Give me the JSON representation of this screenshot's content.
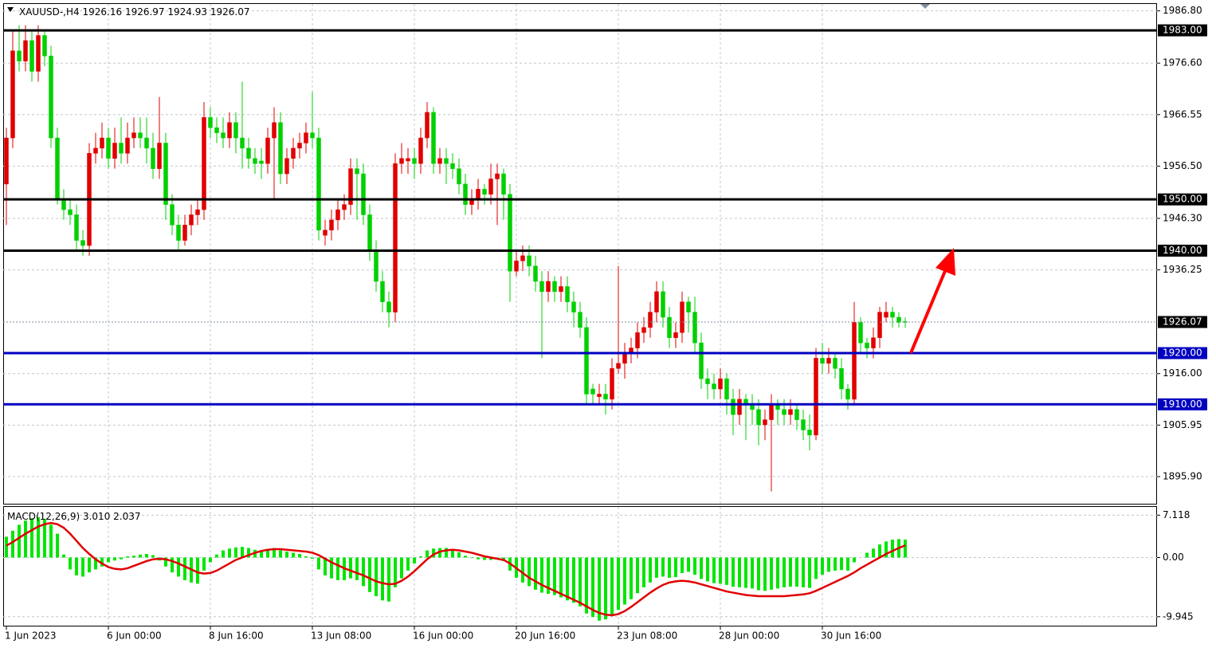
{
  "chart_data": [
    {
      "type": "candlestick",
      "symbol": "XAUUSD-,H4",
      "up_color": "#e00000",
      "down_color": "#00d000",
      "grid": true,
      "ylim": [
        1890.6,
        1988.3
      ],
      "yticks": [
        {
          "value": 1986.8,
          "label": "1986.80"
        },
        {
          "value": 1976.6,
          "label": "1976.60"
        },
        1966.55,
        {
          "value": 1956.5,
          "label": "1956.50"
        },
        {
          "value": 1946.3,
          "label": "1946.30"
        },
        1936.25,
        {
          "value": 1916,
          "label": "1916.00"
        },
        1905.95,
        {
          "value": 1895.9,
          "label": "1895.90"
        }
      ],
      "levels": [
        {
          "value": 1983,
          "label": "1983.00",
          "color": "#000000"
        },
        {
          "value": 1950,
          "label": "1950.00",
          "color": "#000000"
        },
        {
          "value": 1940,
          "label": "1940.00",
          "color": "#000000"
        },
        {
          "value": 1920,
          "label": "1920.00",
          "color": "#0000c0"
        },
        {
          "value": 1910,
          "label": "1910.00",
          "color": "#0000c0"
        }
      ],
      "candles": [
        [
          1953,
          1964,
          1945,
          1962
        ],
        [
          1962,
          1983,
          1960,
          1979
        ],
        [
          1979,
          1984,
          1975,
          1977
        ],
        [
          1977,
          1984,
          1975,
          1981
        ],
        [
          1981,
          1983,
          1973,
          1975
        ],
        [
          1975,
          1984,
          1973,
          1982
        ],
        [
          1982,
          1983,
          1976,
          1978
        ],
        [
          1978,
          1980,
          1960,
          1962
        ],
        [
          1962,
          1964,
          1949,
          1950
        ],
        [
          1950,
          1952,
          1946,
          1948
        ],
        [
          1948,
          1950,
          1945,
          1947
        ],
        [
          1947,
          1949,
          1940,
          1942
        ],
        [
          1942,
          1944,
          1939,
          1941
        ],
        [
          1941,
          1961,
          1939,
          1959
        ],
        [
          1959,
          1963,
          1957,
          1960
        ],
        [
          1960,
          1965,
          1958,
          1962
        ],
        [
          1962,
          1964,
          1956,
          1958
        ],
        [
          1958,
          1964,
          1956,
          1961
        ],
        [
          1961,
          1966,
          1957,
          1959
        ],
        [
          1959,
          1965,
          1957,
          1962
        ],
        [
          1962,
          1966,
          1960,
          1963
        ],
        [
          1963,
          1966,
          1960,
          1962
        ],
        [
          1962,
          1966,
          1957,
          1960
        ],
        [
          1960,
          1963,
          1954,
          1956
        ],
        [
          1956,
          1970,
          1954,
          1961
        ],
        [
          1961,
          1963,
          1946,
          1949
        ],
        [
          1949,
          1951,
          1943,
          1945
        ],
        [
          1945,
          1947,
          1940,
          1942
        ],
        [
          1942,
          1947,
          1941,
          1945
        ],
        [
          1945,
          1949,
          1943,
          1947
        ],
        [
          1947,
          1950,
          1945,
          1948
        ],
        [
          1948,
          1969,
          1946,
          1966
        ],
        [
          1966,
          1968,
          1962,
          1964
        ],
        [
          1964,
          1966,
          1961,
          1963
        ],
        [
          1963,
          1966,
          1960,
          1962
        ],
        [
          1962,
          1967,
          1960,
          1965
        ],
        [
          1965,
          1967,
          1959,
          1962
        ],
        [
          1962,
          1973,
          1956,
          1960
        ],
        [
          1960,
          1962,
          1956,
          1958
        ],
        [
          1958,
          1960,
          1955,
          1957
        ],
        [
          1957.5,
          1960,
          1954,
          1957
        ],
        [
          1957,
          1964,
          1955,
          1962
        ],
        [
          1962,
          1968,
          1950,
          1965
        ],
        [
          1965,
          1967,
          1953,
          1955
        ],
        [
          1955,
          1960,
          1953,
          1958
        ],
        [
          1958,
          1962,
          1956,
          1960
        ],
        [
          1960,
          1963,
          1958,
          1961
        ],
        [
          1961,
          1965,
          1959,
          1963
        ],
        [
          1963,
          1971,
          1960,
          1962
        ],
        [
          1962,
          1964,
          1942,
          1944
        ],
        [
          1943,
          1946,
          1941,
          1944
        ],
        [
          1944,
          1948,
          1942,
          1946
        ],
        [
          1946,
          1950,
          1944,
          1948
        ],
        [
          1948,
          1951,
          1946,
          1949
        ],
        [
          1949,
          1958,
          1947,
          1956
        ],
        [
          1956,
          1958,
          1946,
          1955
        ],
        [
          1955,
          1957,
          1945,
          1947
        ],
        [
          1947,
          1949,
          1938,
          1940
        ],
        [
          1940,
          1942,
          1932,
          1934
        ],
        [
          1934,
          1936,
          1928,
          1930
        ],
        [
          1930,
          1932,
          1925,
          1928
        ],
        [
          1928,
          1959,
          1926,
          1957
        ],
        [
          1957,
          1961,
          1955,
          1958
        ],
        [
          1957.5,
          1960,
          1955,
          1958
        ],
        [
          1958,
          1960,
          1954,
          1957
        ],
        [
          1957,
          1964,
          1955,
          1962
        ],
        [
          1962,
          1969,
          1960,
          1967
        ],
        [
          1967,
          1968,
          1955,
          1957
        ],
        [
          1957,
          1960,
          1955,
          1958
        ],
        [
          1958,
          1960,
          1953,
          1957
        ],
        [
          1957,
          1959,
          1954,
          1956
        ],
        [
          1956,
          1958,
          1951,
          1953
        ],
        [
          1953,
          1955,
          1947,
          1949
        ],
        [
          1949,
          1952,
          1947,
          1950
        ],
        [
          1950,
          1954,
          1948,
          1952
        ],
        [
          1952,
          1953,
          1949,
          1951
        ],
        [
          1951,
          1957,
          1949,
          1954
        ],
        [
          1954,
          1957,
          1945,
          1955
        ],
        [
          1955,
          1956,
          1946,
          1951
        ],
        [
          1951,
          1953,
          1930,
          1936
        ],
        [
          1936,
          1940,
          1935,
          1938
        ],
        [
          1938,
          1941,
          1936,
          1939
        ],
        [
          1939,
          1941,
          1935,
          1937
        ],
        [
          1937,
          1939,
          1932,
          1934
        ],
        [
          1934,
          1936,
          1919,
          1932
        ],
        [
          1932,
          1936,
          1930,
          1934
        ],
        [
          1934,
          1935,
          1930,
          1932
        ],
        [
          1932,
          1935,
          1930,
          1933
        ],
        [
          1933,
          1935,
          1928,
          1930
        ],
        [
          1930,
          1932,
          1925,
          1928
        ],
        [
          1928,
          1930,
          1923,
          1925
        ],
        [
          1925,
          1927,
          1910,
          1912
        ],
        [
          1913,
          1914,
          1910,
          1912
        ],
        [
          1911.5,
          1914,
          1910,
          1912
        ],
        [
          1912,
          1914,
          1908,
          1911
        ],
        [
          1911,
          1919,
          1909,
          1917
        ],
        [
          1917,
          1937,
          1916,
          1918
        ],
        [
          1918,
          1922,
          1915,
          1920
        ],
        [
          1920,
          1923,
          1918,
          1921
        ],
        [
          1921,
          1926,
          1919,
          1924
        ],
        [
          1924,
          1927,
          1922,
          1925
        ],
        [
          1925,
          1930,
          1923,
          1928
        ],
        [
          1928,
          1934,
          1926,
          1932
        ],
        [
          1932,
          1934,
          1925,
          1927
        ],
        [
          1927,
          1929,
          1921,
          1923
        ],
        [
          1923,
          1926,
          1921,
          1924
        ],
        [
          1924,
          1932,
          1922,
          1930
        ],
        [
          1930,
          1931,
          1924,
          1928
        ],
        [
          1928,
          1931,
          1920,
          1922
        ],
        [
          1922,
          1924,
          1913,
          1915
        ],
        [
          1915,
          1917,
          1911,
          1914
        ],
        [
          1914,
          1916,
          1911,
          1913
        ],
        [
          1913,
          1917,
          1911,
          1915
        ],
        [
          1915,
          1916,
          1908,
          1911
        ],
        [
          1911,
          1913,
          1904,
          1908
        ],
        [
          1908,
          1913,
          1906,
          1911
        ],
        [
          1911,
          1912,
          1903,
          1910
        ],
        [
          1910,
          1912,
          1906,
          1909
        ],
        [
          1909,
          1911,
          1902,
          1906
        ],
        [
          1906,
          1909,
          1903,
          1907
        ],
        [
          1907,
          1912,
          1893,
          1910
        ],
        [
          1910,
          1911,
          1906,
          1909
        ],
        [
          1909,
          1911,
          1906,
          1908
        ],
        [
          1908,
          1911,
          1906,
          1909
        ],
        [
          1909,
          1910,
          1905,
          1907
        ],
        [
          1907,
          1909,
          1903,
          1905
        ],
        [
          1905,
          1908,
          1901,
          1904
        ],
        [
          1904,
          1921,
          1903,
          1919
        ],
        [
          1919,
          1922,
          1916,
          1918
        ],
        [
          1918,
          1921,
          1916,
          1919
        ],
        [
          1919,
          1920,
          1915,
          1917
        ],
        [
          1917,
          1919,
          1911,
          1913
        ],
        [
          1913,
          1914,
          1909,
          1911
        ],
        [
          1911,
          1930,
          1910,
          1926
        ],
        [
          1926,
          1927,
          1920,
          1922
        ],
        [
          1922,
          1923,
          1919,
          1921
        ],
        [
          1921,
          1925,
          1919,
          1923
        ],
        [
          1923,
          1929,
          1921,
          1928
        ],
        [
          1927,
          1930,
          1926,
          1928
        ],
        [
          1928,
          1929,
          1925,
          1927
        ],
        [
          1927,
          1928,
          1925,
          1926
        ],
        [
          1926.16,
          1926.97,
          1924.93,
          1926.07
        ]
      ]
    },
    {
      "type": "macd",
      "title": "MACD(12,26,9)",
      "value_labels": [
        "3.010",
        "2.037"
      ],
      "grid": true,
      "ylim": [
        -11.45,
        8.5
      ],
      "yticks": [
        7.118,
        {
          "value": 0,
          "label": "0.00"
        },
        -9.945
      ],
      "xticks": [
        {
          "value": 0,
          "label": "1 Jun 2023"
        },
        {
          "value": 16,
          "label": "6 Jun 00:00"
        },
        {
          "value": 32,
          "label": "8 Jun 16:00"
        },
        {
          "value": 48,
          "label": "13 Jun 08:00"
        },
        {
          "value": 64,
          "label": "16 Jun 00:00"
        },
        {
          "value": 80,
          "label": "20 Jun 16:00"
        },
        {
          "value": 96,
          "label": "23 Jun 08:00"
        },
        {
          "value": 112,
          "label": "28 Jun 00:00"
        },
        {
          "value": 128,
          "label": "30 Jun 16:00"
        }
      ],
      "histogram": {
        "color": "#00e600",
        "values": [
          3.5,
          4.5,
          5.5,
          6.2,
          6.6,
          6.8,
          6.5,
          5.5,
          4.0,
          0.5,
          -2,
          -3,
          -3.2,
          -2.5,
          -2,
          -1.5,
          -0.8,
          -0.5,
          -0.3,
          0.2,
          0.3,
          0.5,
          0.6,
          0.4,
          -0.5,
          -1.5,
          -2.5,
          -3.2,
          -3.8,
          -4.2,
          -4.4,
          -2.2,
          -0.8,
          0.5,
          1.2,
          1.5,
          1.7,
          1.8,
          1.6,
          1.3,
          1.2,
          1.4,
          1.6,
          1.2,
          1.0,
          0.8,
          0.6,
          0.2,
          -0.2,
          -2,
          -3,
          -3.5,
          -3.8,
          -3.8,
          -3.5,
          -3.8,
          -4.8,
          -5.8,
          -6.5,
          -7.2,
          -7.4,
          -5,
          -3.5,
          -2.2,
          -1,
          0.2,
          1.2,
          1.5,
          1.6,
          1.6,
          1.3,
          0.9,
          0.3,
          -0.1,
          -0.3,
          -0.4,
          -0.4,
          -0.3,
          -0.6,
          -2.2,
          -3.4,
          -4.2,
          -4.8,
          -5.4,
          -5.9,
          -6.1,
          -6.3,
          -6.7,
          -7.2,
          -7.6,
          -8.2,
          -9.4,
          -10,
          -10.6,
          -10.4,
          -9.6,
          -8.8,
          -7.9,
          -7,
          -6,
          -5,
          -4.2,
          -3.4,
          -3.2,
          -3.4,
          -3.3,
          -2.6,
          -2.4,
          -2.9,
          -3.6,
          -4,
          -4.3,
          -4.4,
          -4.6,
          -4.9,
          -5,
          -5.1,
          -5.2,
          -5.5,
          -5.6,
          -5.4,
          -5.2,
          -5,
          -4.9,
          -4.9,
          -5,
          -5.1,
          -3.6,
          -2.9,
          -2.4,
          -2.2,
          -2.1,
          -2.2,
          -0.8,
          0,
          0.8,
          1.5,
          2.2,
          2.7,
          3.0,
          3.1,
          3.01
        ]
      },
      "signal": {
        "color": "#e00000",
        "values": [
          2.0,
          2.6,
          3.3,
          4.0,
          4.6,
          5.2,
          5.6,
          5.8,
          5.6,
          5.0,
          4.0,
          2.8,
          1.6,
          0.6,
          -0.3,
          -1.0,
          -1.6,
          -1.9,
          -2.0,
          -1.8,
          -1.4,
          -1.0,
          -0.6,
          -0.3,
          -0.2,
          -0.3,
          -0.6,
          -1.0,
          -1.5,
          -2.0,
          -2.5,
          -2.7,
          -2.6,
          -2.2,
          -1.6,
          -1.0,
          -0.4,
          0.0,
          0.4,
          0.8,
          1.1,
          1.3,
          1.4,
          1.4,
          1.3,
          1.2,
          1.1,
          1.0,
          0.8,
          0.4,
          -0.2,
          -0.8,
          -1.3,
          -1.8,
          -2.2,
          -2.6,
          -3.0,
          -3.5,
          -4.0,
          -4.3,
          -4.5,
          -4.4,
          -3.9,
          -3.2,
          -2.3,
          -1.3,
          -0.3,
          0.5,
          1.0,
          1.2,
          1.3,
          1.2,
          1.0,
          0.8,
          0.5,
          0.2,
          0.0,
          -0.2,
          -0.4,
          -1.0,
          -1.8,
          -2.6,
          -3.4,
          -4.0,
          -4.6,
          -5.1,
          -5.6,
          -6.1,
          -6.6,
          -7.1,
          -7.6,
          -8.2,
          -8.8,
          -9.3,
          -9.6,
          -9.7,
          -9.5,
          -9.0,
          -8.3,
          -7.5,
          -6.7,
          -5.9,
          -5.2,
          -4.6,
          -4.2,
          -4.0,
          -3.9,
          -4.0,
          -4.2,
          -4.5,
          -4.8,
          -5.1,
          -5.4,
          -5.7,
          -5.9,
          -6.1,
          -6.3,
          -6.4,
          -6.5,
          -6.5,
          -6.5,
          -6.5,
          -6.5,
          -6.4,
          -6.3,
          -6.2,
          -6.0,
          -5.6,
          -5.1,
          -4.6,
          -4.1,
          -3.6,
          -3.1,
          -2.5,
          -1.8,
          -1.2,
          -0.6,
          0.0,
          0.6,
          1.1,
          1.6,
          2.037
        ]
      }
    }
  ]
}
